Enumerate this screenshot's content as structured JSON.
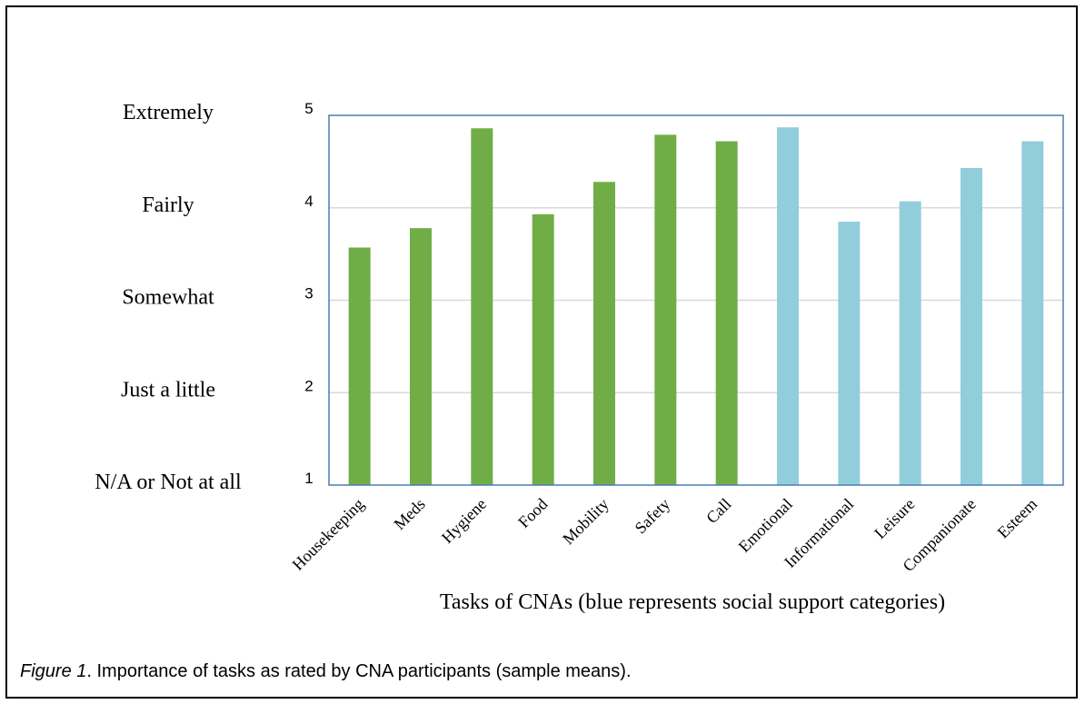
{
  "chart_data": {
    "type": "bar",
    "categories": [
      "Housekeeping",
      "Meds",
      "Hygiene",
      "Food",
      "Mobility",
      "Safety",
      "Call",
      "Emotional",
      "Informational",
      "Leisure",
      "Companionate",
      "Esteem"
    ],
    "values": [
      3.57,
      3.78,
      4.86,
      3.93,
      4.28,
      4.79,
      4.72,
      4.87,
      3.85,
      4.07,
      4.43,
      4.72
    ],
    "bar_colors": [
      "#70ad47",
      "#70ad47",
      "#70ad47",
      "#70ad47",
      "#70ad47",
      "#70ad47",
      "#70ad47",
      "#92cddc",
      "#92cddc",
      "#92cddc",
      "#92cddc",
      "#92cddc"
    ],
    "ylim": [
      1,
      5
    ],
    "y_ticks": [
      1,
      2,
      3,
      4,
      5
    ],
    "y_tick_labels": [
      "1",
      "2",
      "3",
      "4",
      "5"
    ],
    "scale_labels": [
      "N/A or Not at all",
      "Just a little",
      "Somewhat",
      "Fairly",
      "Extremely"
    ],
    "xlabel": "Tasks of CNAs (blue represents social support categories)",
    "ylabel": "",
    "grid": true,
    "axis_color": "#4a7fb5",
    "grid_color": "#d9d9d9"
  },
  "caption": {
    "figure_label": "Figure 1",
    "text": ". Importance of tasks as rated by CNA participants (sample means)."
  }
}
